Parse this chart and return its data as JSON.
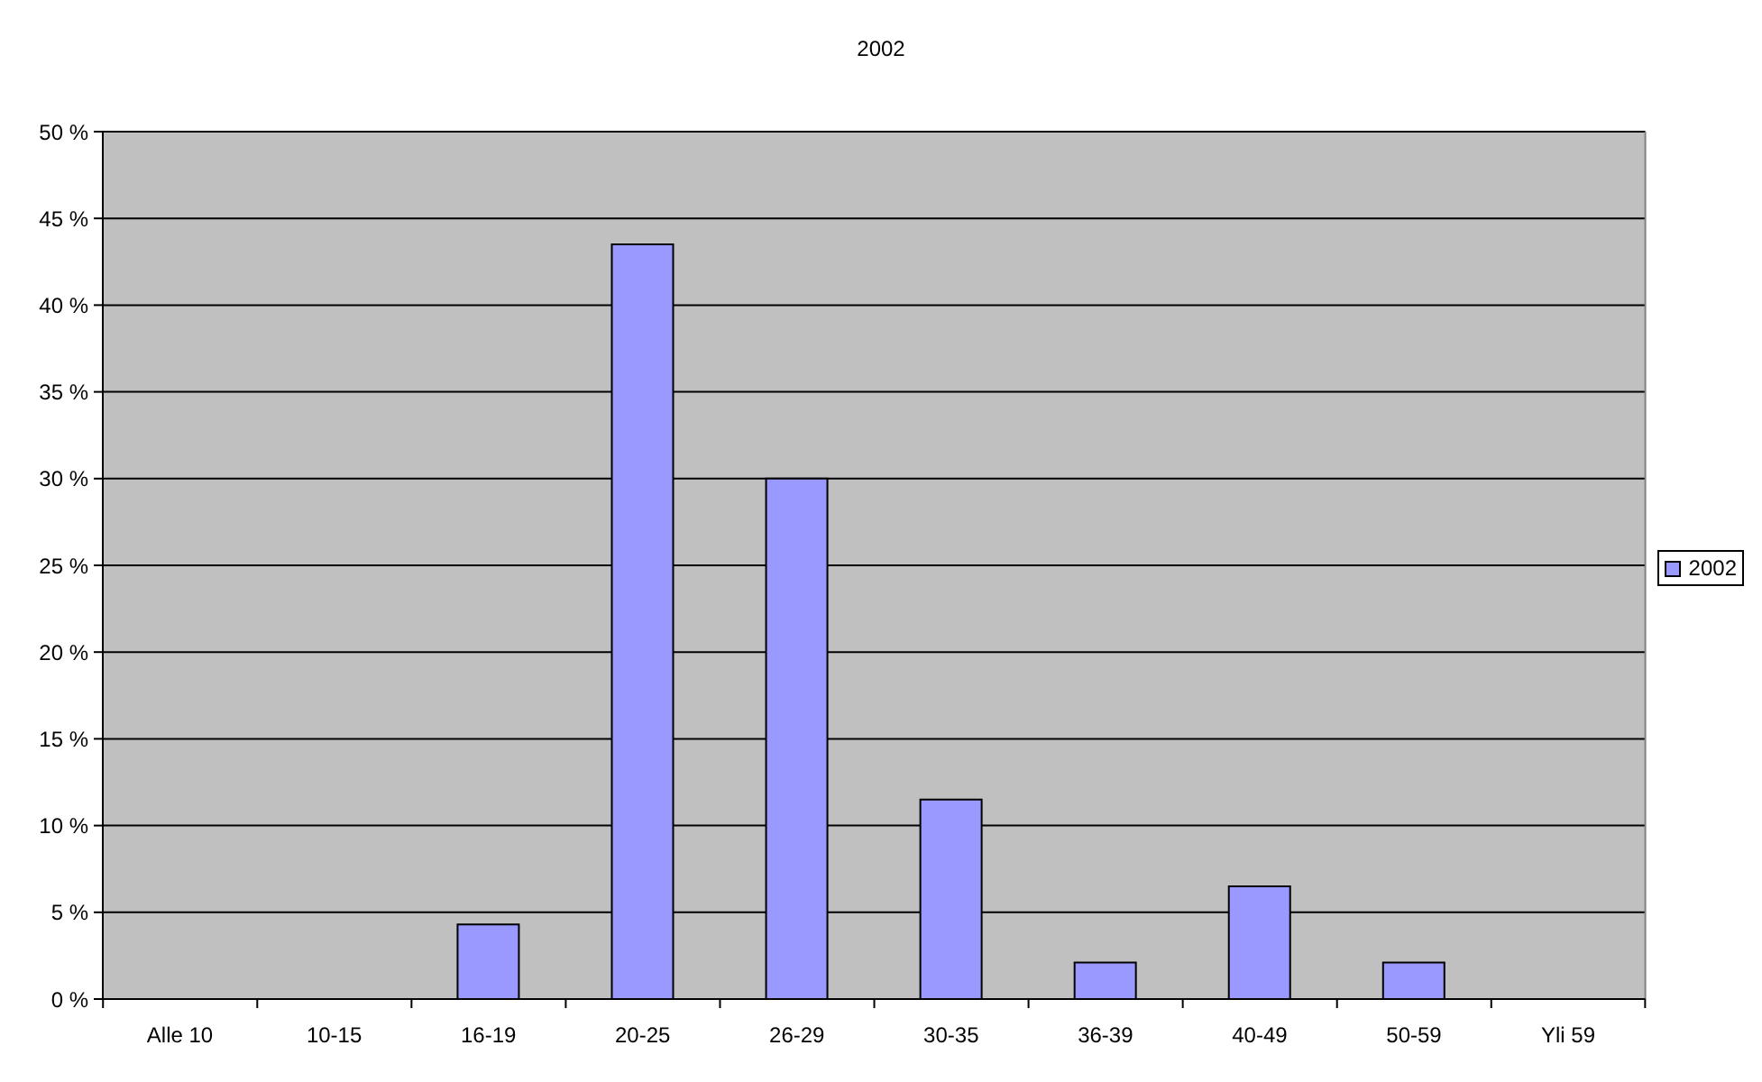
{
  "chart_data": {
    "type": "bar",
    "title": "2002",
    "categories": [
      "Alle 10",
      "10-15",
      "16-19",
      "20-25",
      "26-29",
      "30-35",
      "36-39",
      "40-49",
      "50-59",
      "Yli 59"
    ],
    "series": [
      {
        "name": "2002",
        "color": "#9999ff",
        "values": [
          0,
          0,
          4.3,
          43.5,
          30.0,
          11.5,
          2.1,
          6.5,
          2.1,
          0
        ]
      }
    ],
    "ylim": [
      0,
      50
    ],
    "yticks": [
      {
        "value": 0,
        "label": "0 %"
      },
      {
        "value": 5,
        "label": "5 %"
      },
      {
        "value": 10,
        "label": "10 %"
      },
      {
        "value": 15,
        "label": "15 %"
      },
      {
        "value": 20,
        "label": "20 %"
      },
      {
        "value": 25,
        "label": "25 %"
      },
      {
        "value": 30,
        "label": "30 %"
      },
      {
        "value": 35,
        "label": "35 %"
      },
      {
        "value": 40,
        "label": "40 %"
      },
      {
        "value": 45,
        "label": "45 %"
      },
      {
        "value": 50,
        "label": "50 %"
      }
    ],
    "grid": "y",
    "legend": "right"
  }
}
